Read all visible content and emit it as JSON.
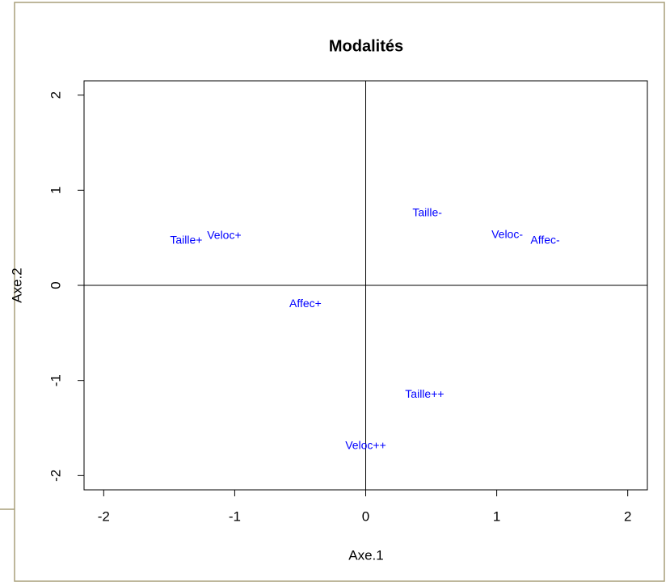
{
  "chart_data": {
    "type": "scatter",
    "title": "Modalités",
    "x_label": "Axe.1",
    "y_label": "Axe.2",
    "series": [
      {
        "color": "#0000ff",
        "labels": [
          "Taille+",
          "Veloc+",
          "Taille-",
          "Veloc-",
          "Affec-",
          "Affec+",
          "Taille++",
          "Veloc++"
        ],
        "x": [
          -1.37,
          -1.08,
          0.47,
          1.08,
          1.37,
          -0.46,
          0.45,
          0.0
        ],
        "values": [
          0.47,
          0.52,
          0.76,
          0.53,
          0.47,
          -0.2,
          -1.15,
          -1.69
        ]
      }
    ],
    "xlim": [
      -2.15,
      2.15
    ],
    "ylim": [
      -2.15,
      2.15
    ],
    "xticks": [
      -2,
      -1,
      0,
      1,
      2
    ],
    "yticks": [
      -2,
      -1,
      0,
      1,
      2
    ],
    "hline": 0,
    "vline": 0
  }
}
